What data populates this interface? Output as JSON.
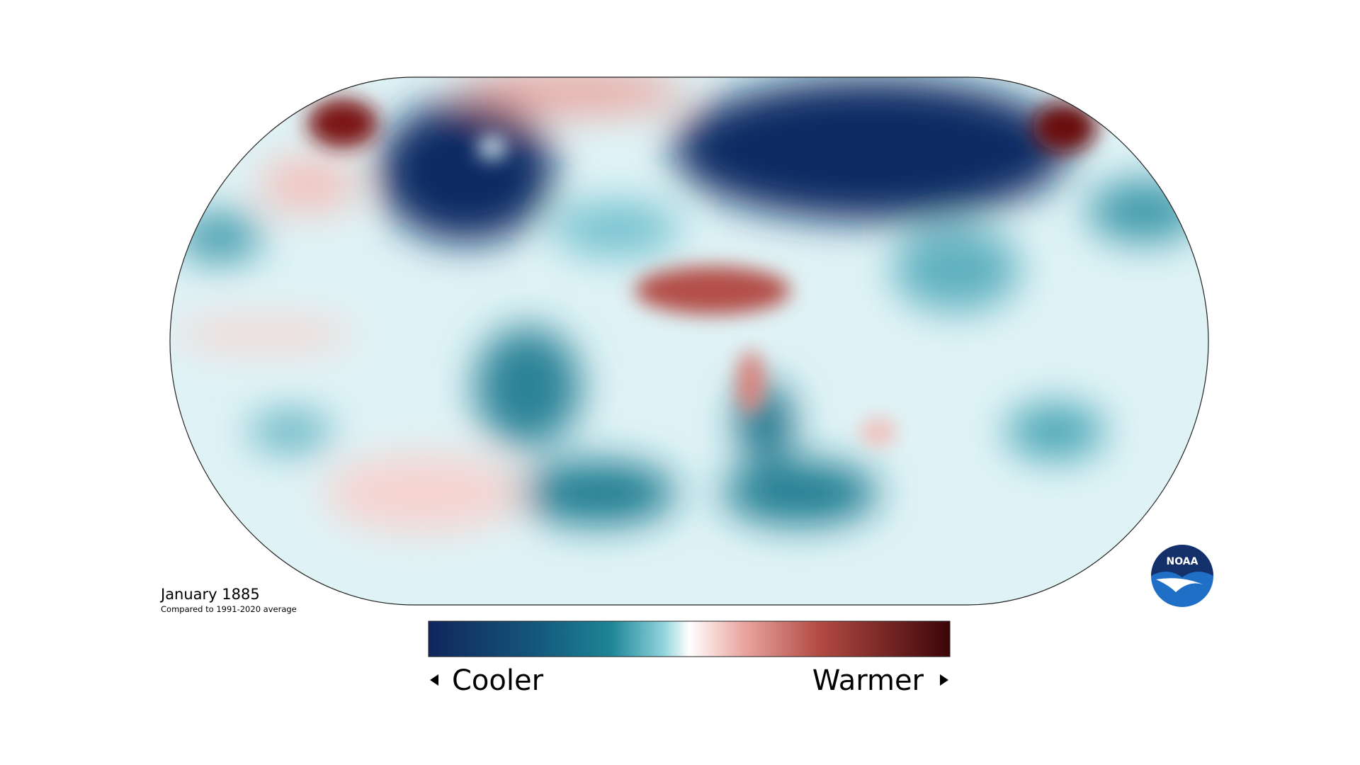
{
  "map": {
    "title": "January 1885",
    "subtitle": "Compared to 1991-2020 average"
  },
  "legend": {
    "low_label": "Cooler",
    "high_label": "Warmer"
  },
  "logo": {
    "text": "NOAA"
  }
}
